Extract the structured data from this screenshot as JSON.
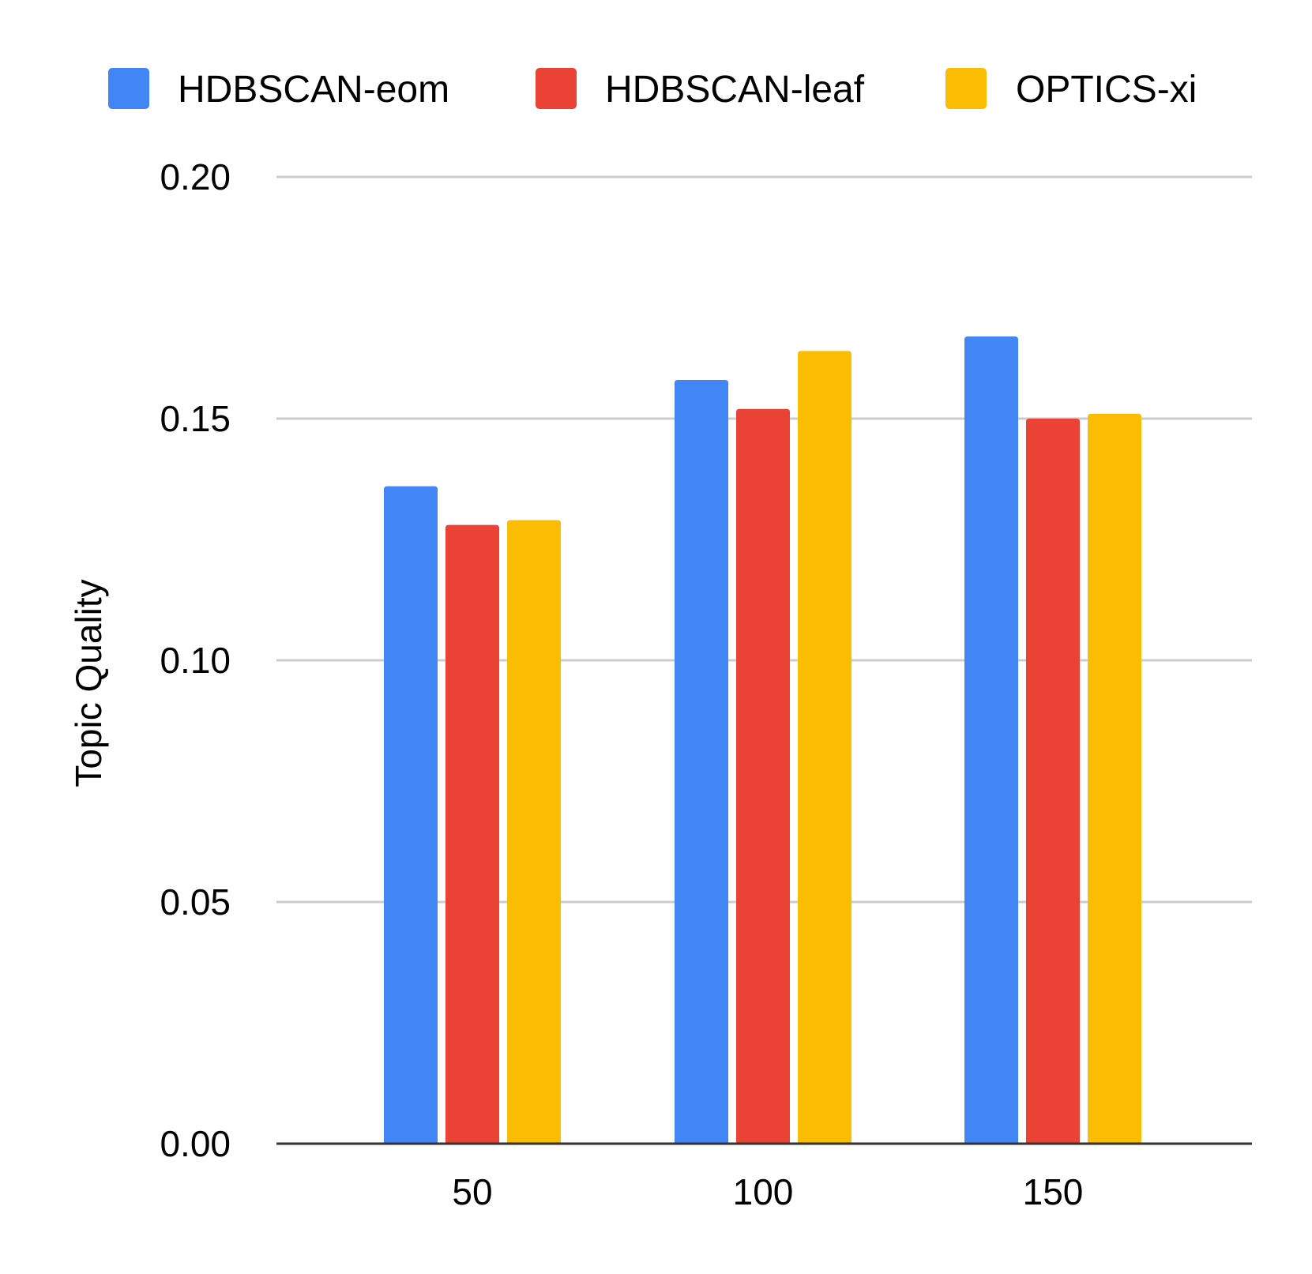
{
  "chart_data": {
    "type": "bar",
    "title": "",
    "xlabel": "",
    "ylabel": "Topic Quality",
    "categories": [
      "50",
      "100",
      "150"
    ],
    "series": [
      {
        "name": "HDBSCAN-eom",
        "color": "#4285F4",
        "values": [
          0.136,
          0.158,
          0.167
        ]
      },
      {
        "name": "HDBSCAN-leaf",
        "color": "#EA4335",
        "values": [
          0.128,
          0.152,
          0.15
        ]
      },
      {
        "name": "OPTICS-xi",
        "color": "#FBBC04",
        "values": [
          0.129,
          0.164,
          0.151
        ]
      }
    ],
    "ylim": [
      0,
      0.2
    ],
    "yticks": [
      "0.00",
      "0.05",
      "0.10",
      "0.15",
      "0.20"
    ],
    "grid": true,
    "legend_position": "top-center"
  }
}
